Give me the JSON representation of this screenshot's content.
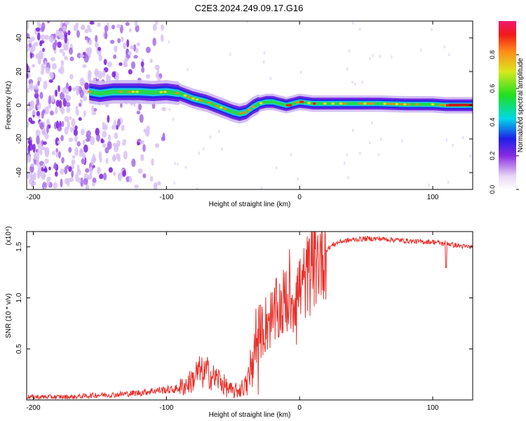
{
  "figure_title": "C2E3.2024.249.09.17.G16",
  "chart_data": [
    {
      "type": "heatmap",
      "xlabel": "Height of straight line (km)",
      "ylabel": "Frequency (Hz)",
      "xlim": [
        -205,
        130
      ],
      "ylim": [
        -50,
        50
      ],
      "x_ticks": [
        -200,
        -100,
        0,
        100
      ],
      "y_ticks": [
        -40,
        -20,
        0,
        20,
        40
      ],
      "colorbar": {
        "label": "Normalized spectral amplitude",
        "range": [
          0,
          1
        ],
        "ticks": [
          0.0,
          0.2,
          0.4,
          0.6,
          0.8
        ]
      },
      "ridge": {
        "x": [
          -158,
          -150,
          -140,
          -130,
          -120,
          -110,
          -100,
          -90,
          -80,
          -70,
          -60,
          -50,
          -45,
          -40,
          -35,
          -30,
          -25,
          -20,
          -15,
          -10,
          -5,
          0,
          10,
          20,
          40,
          60,
          80,
          100,
          110,
          120,
          130
        ],
        "y": [
          8,
          7,
          8,
          8,
          8,
          7.5,
          8,
          7,
          4,
          2,
          -1,
          -4,
          -5,
          -4,
          -1,
          1,
          2,
          2,
          1,
          0,
          1,
          2,
          1,
          1,
          1,
          1,
          0.5,
          0.5,
          0,
          0,
          0
        ]
      },
      "noise_region_x": [
        -205,
        -100
      ]
    },
    {
      "type": "line",
      "xlabel": "Height of straight line (km)",
      "ylabel": "SNR (10 * v/v)",
      "y_multiplier": "(x10⁴)",
      "xlim": [
        -205,
        130
      ],
      "ylim": [
        0,
        1.65
      ],
      "x_ticks": [
        -200,
        -100,
        0,
        100
      ],
      "y_ticks": [
        0.5,
        1.0,
        1.5
      ],
      "series": [
        {
          "color": "#e8302a",
          "x": [
            -205,
            -190,
            -170,
            -160,
            -150,
            -140,
            -130,
            -120,
            -110,
            -100,
            -95,
            -90,
            -85,
            -80,
            -78,
            -75,
            -72,
            -70,
            -65,
            -60,
            -55,
            -50,
            -45,
            -40,
            -38,
            -35,
            -32,
            -30,
            -28,
            -25,
            -22,
            -20,
            -18,
            -15,
            -12,
            -10,
            -8,
            -5,
            -2,
            0,
            2,
            5,
            8,
            10,
            15,
            20,
            25,
            30,
            35,
            40,
            50,
            60,
            70,
            80,
            90,
            100,
            105,
            108,
            110,
            112,
            115,
            120,
            125,
            130
          ],
          "y": [
            0.03,
            0.03,
            0.03,
            0.04,
            0.05,
            0.05,
            0.06,
            0.07,
            0.09,
            0.1,
            0.1,
            0.12,
            0.15,
            0.2,
            0.25,
            0.28,
            0.25,
            0.28,
            0.22,
            0.2,
            0.12,
            0.08,
            0.1,
            0.15,
            0.2,
            0.4,
            0.55,
            0.65,
            0.7,
            0.75,
            0.8,
            0.78,
            0.85,
            0.9,
            0.95,
            1.0,
            0.95,
            1.0,
            1.05,
            1.1,
            1.1,
            1.2,
            1.25,
            1.3,
            1.4,
            1.47,
            1.52,
            1.55,
            1.56,
            1.57,
            1.58,
            1.58,
            1.57,
            1.56,
            1.55,
            1.55,
            1.54,
            1.53,
            1.55,
            1.53,
            1.52,
            1.51,
            1.5,
            1.5
          ]
        }
      ]
    }
  ]
}
